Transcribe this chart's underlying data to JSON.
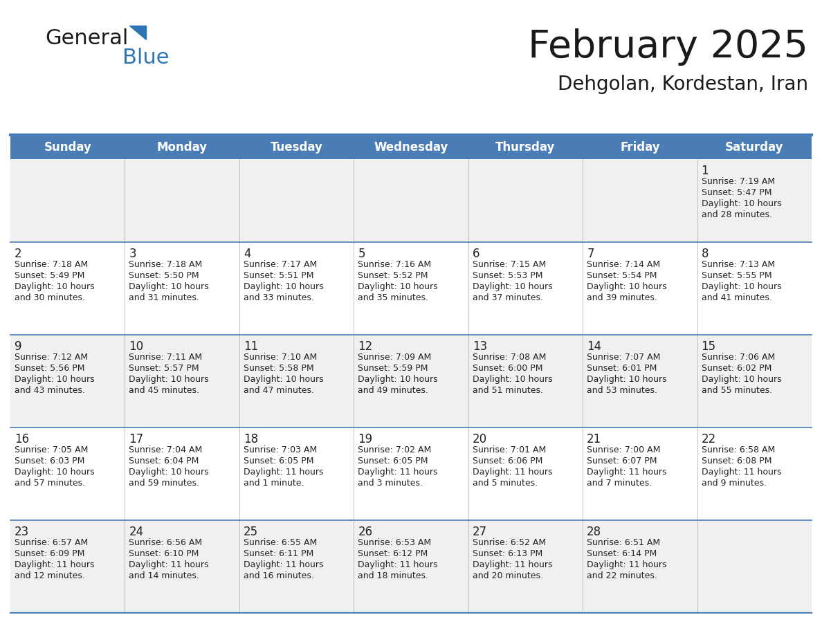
{
  "title": "February 2025",
  "subtitle": "Dehgolan, Kordestan, Iran",
  "days_of_week": [
    "Sunday",
    "Monday",
    "Tuesday",
    "Wednesday",
    "Thursday",
    "Friday",
    "Saturday"
  ],
  "header_bg": "#4a7db5",
  "header_text": "#ffffff",
  "row_bg_odd": "#f0f0f0",
  "row_bg_even": "#ffffff",
  "cell_border_color": "#4a7db5",
  "day_num_color": "#222222",
  "info_text_color": "#222222",
  "logo_general_color": "#1a1a1a",
  "logo_blue_color": "#2e75b6",
  "logo_triangle_color": "#2e75b6",
  "title_color": "#1a1a1a",
  "subtitle_color": "#1a1a1a",
  "fig_width": 11.88,
  "fig_height": 9.18,
  "calendar_data": [
    [
      {
        "day": null,
        "info": null
      },
      {
        "day": null,
        "info": null
      },
      {
        "day": null,
        "info": null
      },
      {
        "day": null,
        "info": null
      },
      {
        "day": null,
        "info": null
      },
      {
        "day": null,
        "info": null
      },
      {
        "day": 1,
        "info": "Sunrise: 7:19 AM\nSunset: 5:47 PM\nDaylight: 10 hours\nand 28 minutes."
      }
    ],
    [
      {
        "day": 2,
        "info": "Sunrise: 7:18 AM\nSunset: 5:49 PM\nDaylight: 10 hours\nand 30 minutes."
      },
      {
        "day": 3,
        "info": "Sunrise: 7:18 AM\nSunset: 5:50 PM\nDaylight: 10 hours\nand 31 minutes."
      },
      {
        "day": 4,
        "info": "Sunrise: 7:17 AM\nSunset: 5:51 PM\nDaylight: 10 hours\nand 33 minutes."
      },
      {
        "day": 5,
        "info": "Sunrise: 7:16 AM\nSunset: 5:52 PM\nDaylight: 10 hours\nand 35 minutes."
      },
      {
        "day": 6,
        "info": "Sunrise: 7:15 AM\nSunset: 5:53 PM\nDaylight: 10 hours\nand 37 minutes."
      },
      {
        "day": 7,
        "info": "Sunrise: 7:14 AM\nSunset: 5:54 PM\nDaylight: 10 hours\nand 39 minutes."
      },
      {
        "day": 8,
        "info": "Sunrise: 7:13 AM\nSunset: 5:55 PM\nDaylight: 10 hours\nand 41 minutes."
      }
    ],
    [
      {
        "day": 9,
        "info": "Sunrise: 7:12 AM\nSunset: 5:56 PM\nDaylight: 10 hours\nand 43 minutes."
      },
      {
        "day": 10,
        "info": "Sunrise: 7:11 AM\nSunset: 5:57 PM\nDaylight: 10 hours\nand 45 minutes."
      },
      {
        "day": 11,
        "info": "Sunrise: 7:10 AM\nSunset: 5:58 PM\nDaylight: 10 hours\nand 47 minutes."
      },
      {
        "day": 12,
        "info": "Sunrise: 7:09 AM\nSunset: 5:59 PM\nDaylight: 10 hours\nand 49 minutes."
      },
      {
        "day": 13,
        "info": "Sunrise: 7:08 AM\nSunset: 6:00 PM\nDaylight: 10 hours\nand 51 minutes."
      },
      {
        "day": 14,
        "info": "Sunrise: 7:07 AM\nSunset: 6:01 PM\nDaylight: 10 hours\nand 53 minutes."
      },
      {
        "day": 15,
        "info": "Sunrise: 7:06 AM\nSunset: 6:02 PM\nDaylight: 10 hours\nand 55 minutes."
      }
    ],
    [
      {
        "day": 16,
        "info": "Sunrise: 7:05 AM\nSunset: 6:03 PM\nDaylight: 10 hours\nand 57 minutes."
      },
      {
        "day": 17,
        "info": "Sunrise: 7:04 AM\nSunset: 6:04 PM\nDaylight: 10 hours\nand 59 minutes."
      },
      {
        "day": 18,
        "info": "Sunrise: 7:03 AM\nSunset: 6:05 PM\nDaylight: 11 hours\nand 1 minute."
      },
      {
        "day": 19,
        "info": "Sunrise: 7:02 AM\nSunset: 6:05 PM\nDaylight: 11 hours\nand 3 minutes."
      },
      {
        "day": 20,
        "info": "Sunrise: 7:01 AM\nSunset: 6:06 PM\nDaylight: 11 hours\nand 5 minutes."
      },
      {
        "day": 21,
        "info": "Sunrise: 7:00 AM\nSunset: 6:07 PM\nDaylight: 11 hours\nand 7 minutes."
      },
      {
        "day": 22,
        "info": "Sunrise: 6:58 AM\nSunset: 6:08 PM\nDaylight: 11 hours\nand 9 minutes."
      }
    ],
    [
      {
        "day": 23,
        "info": "Sunrise: 6:57 AM\nSunset: 6:09 PM\nDaylight: 11 hours\nand 12 minutes."
      },
      {
        "day": 24,
        "info": "Sunrise: 6:56 AM\nSunset: 6:10 PM\nDaylight: 11 hours\nand 14 minutes."
      },
      {
        "day": 25,
        "info": "Sunrise: 6:55 AM\nSunset: 6:11 PM\nDaylight: 11 hours\nand 16 minutes."
      },
      {
        "day": 26,
        "info": "Sunrise: 6:53 AM\nSunset: 6:12 PM\nDaylight: 11 hours\nand 18 minutes."
      },
      {
        "day": 27,
        "info": "Sunrise: 6:52 AM\nSunset: 6:13 PM\nDaylight: 11 hours\nand 20 minutes."
      },
      {
        "day": 28,
        "info": "Sunrise: 6:51 AM\nSunset: 6:14 PM\nDaylight: 11 hours\nand 22 minutes."
      },
      {
        "day": null,
        "info": null
      }
    ]
  ]
}
